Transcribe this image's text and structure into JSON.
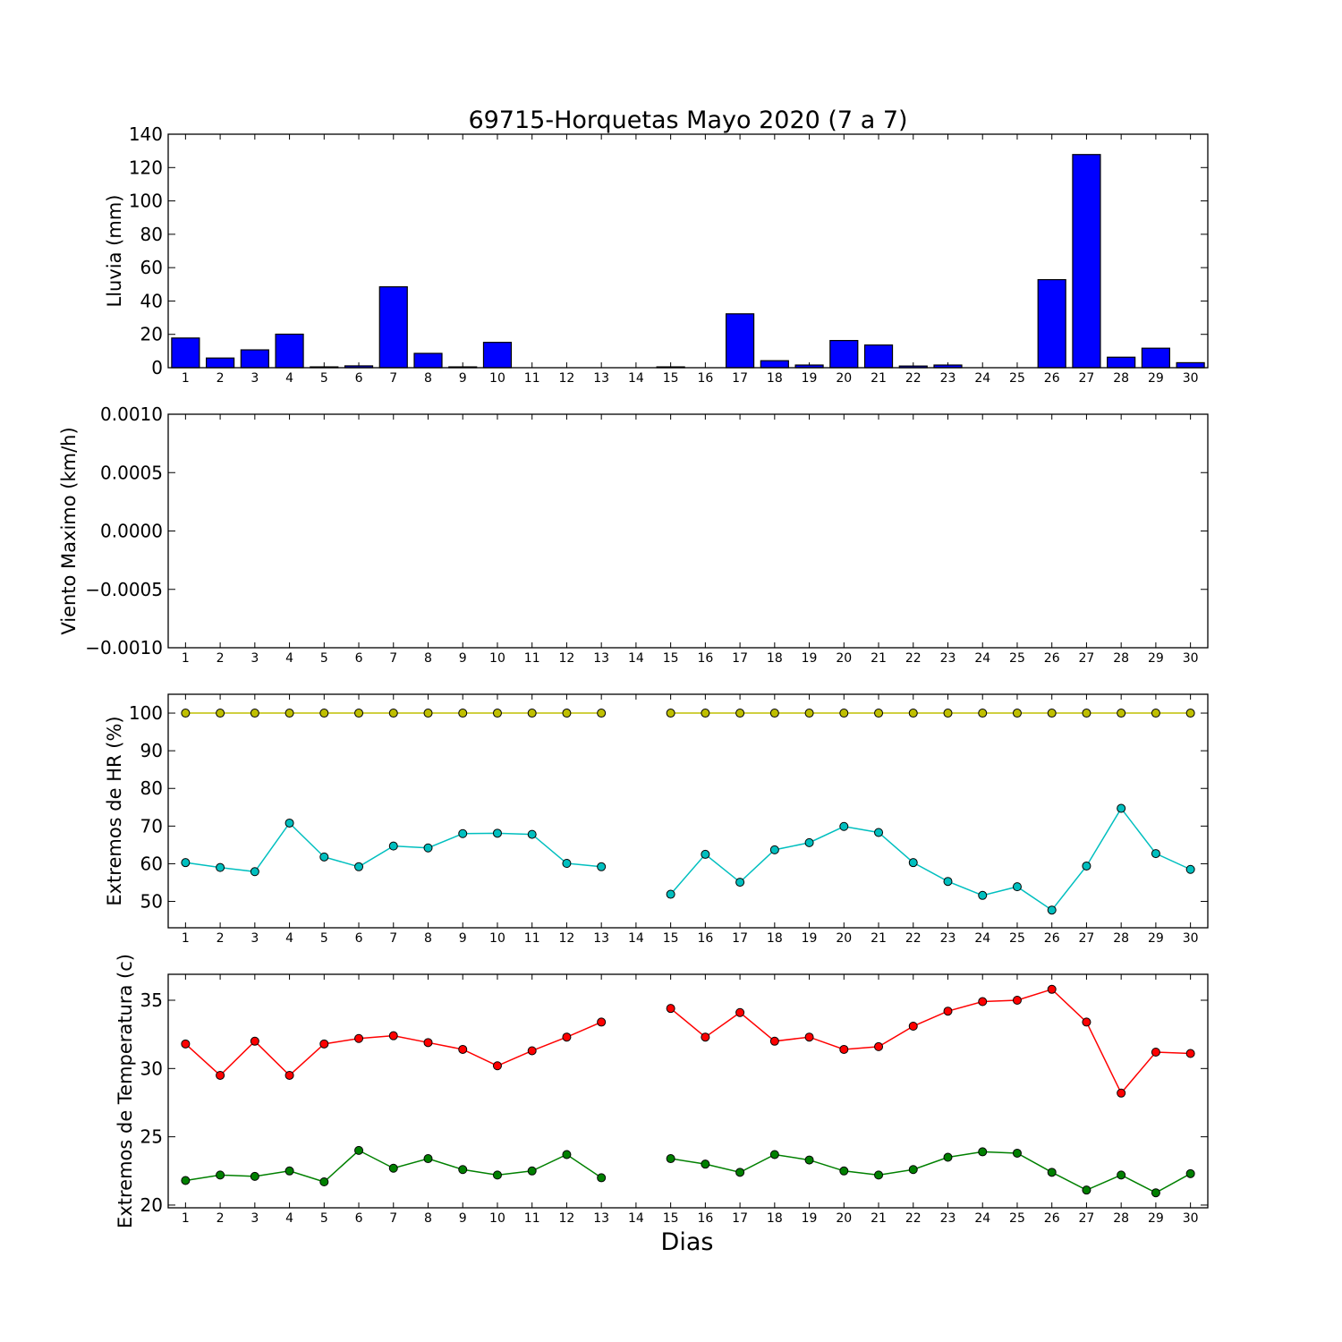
{
  "figure": {
    "title": "69715-Horquetas Mayo 2020  (7 a 7)",
    "xlabel": "Dias"
  },
  "chart_data": [
    {
      "type": "bar",
      "ylabel": "Lluvia (mm)",
      "ylim": [
        0,
        140
      ],
      "yticks": [
        "0",
        "20",
        "40",
        "60",
        "80",
        "100",
        "120",
        "140"
      ],
      "categories": [
        "1",
        "2",
        "3",
        "4",
        "5",
        "6",
        "7",
        "8",
        "9",
        "10",
        "11",
        "12",
        "13",
        "14",
        "15",
        "16",
        "17",
        "18",
        "19",
        "20",
        "21",
        "22",
        "23",
        "24",
        "25",
        "26",
        "27",
        "28",
        "29",
        "30"
      ],
      "color": "#0000ff",
      "values": [
        17.8,
        5.8,
        10.7,
        20.1,
        0.5,
        1.1,
        48.5,
        8.6,
        0.5,
        15.2,
        0,
        0,
        0,
        0,
        0.5,
        0,
        32.3,
        4.2,
        1.6,
        16.3,
        13.6,
        1.0,
        1.6,
        0,
        0,
        52.8,
        127.8,
        6.3,
        11.7,
        3.0
      ]
    },
    {
      "type": "line",
      "ylabel": "Viento Maximo (km/h)",
      "ylim": [
        -0.001,
        0.001
      ],
      "yticks": [
        "−0.0010",
        "−0.0005",
        "0.0000",
        "0.0005",
        "0.0010"
      ],
      "categories": [
        "1",
        "2",
        "3",
        "4",
        "5",
        "6",
        "7",
        "8",
        "9",
        "10",
        "11",
        "12",
        "13",
        "14",
        "15",
        "16",
        "17",
        "18",
        "19",
        "20",
        "21",
        "22",
        "23",
        "24",
        "25",
        "26",
        "27",
        "28",
        "29",
        "30"
      ],
      "series": []
    },
    {
      "type": "line",
      "ylabel": "Extremos de HR (%)",
      "ylim": [
        43,
        105
      ],
      "yticks": [
        "50",
        "60",
        "70",
        "80",
        "90",
        "100"
      ],
      "categories": [
        "1",
        "2",
        "3",
        "4",
        "5",
        "6",
        "7",
        "8",
        "9",
        "10",
        "11",
        "12",
        "13",
        "14",
        "15",
        "16",
        "17",
        "18",
        "19",
        "20",
        "21",
        "22",
        "23",
        "24",
        "25",
        "26",
        "27",
        "28",
        "29",
        "30"
      ],
      "series": [
        {
          "color": "#bfbf00",
          "values": [
            100,
            100,
            100,
            100,
            100,
            100,
            100,
            100,
            100,
            100,
            100,
            100,
            100,
            null,
            100,
            100,
            100,
            100,
            100,
            100,
            100,
            100,
            100,
            100,
            100,
            100,
            100,
            100,
            100,
            100
          ]
        },
        {
          "color": "#00bfbf",
          "values": [
            60.3,
            59.0,
            57.9,
            70.8,
            61.8,
            59.2,
            64.7,
            64.2,
            68.0,
            68.1,
            67.8,
            60.1,
            59.2,
            null,
            51.9,
            62.5,
            55.1,
            63.7,
            65.6,
            69.9,
            68.3,
            60.3,
            55.3,
            51.6,
            53.9,
            47.7,
            59.4,
            74.7,
            62.7,
            58.5
          ]
        }
      ]
    },
    {
      "type": "line",
      "ylabel": "Extremos de Temperatura (c)",
      "ylim": [
        19.8,
        36.9
      ],
      "yticks": [
        "20",
        "25",
        "30",
        "35"
      ],
      "categories": [
        "1",
        "2",
        "3",
        "4",
        "5",
        "6",
        "7",
        "8",
        "9",
        "10",
        "11",
        "12",
        "13",
        "14",
        "15",
        "16",
        "17",
        "18",
        "19",
        "20",
        "21",
        "22",
        "23",
        "24",
        "25",
        "26",
        "27",
        "28",
        "29",
        "30"
      ],
      "series": [
        {
          "color": "#ff0000",
          "values": [
            31.8,
            29.5,
            32.0,
            29.5,
            31.8,
            32.2,
            32.4,
            31.9,
            31.4,
            30.2,
            31.3,
            32.3,
            33.4,
            null,
            34.4,
            32.3,
            34.1,
            32.0,
            32.3,
            31.4,
            31.6,
            33.1,
            34.2,
            34.9,
            35.0,
            35.8,
            33.4,
            28.2,
            31.2,
            31.1
          ]
        },
        {
          "color": "#008000",
          "values": [
            21.8,
            22.2,
            22.1,
            22.5,
            21.7,
            24.0,
            22.7,
            23.4,
            22.6,
            22.2,
            22.5,
            23.7,
            22.0,
            null,
            23.4,
            23.0,
            22.4,
            23.7,
            23.3,
            22.5,
            22.2,
            22.6,
            23.5,
            23.9,
            23.8,
            22.4,
            21.1,
            22.2,
            20.9,
            22.3
          ]
        }
      ]
    }
  ]
}
